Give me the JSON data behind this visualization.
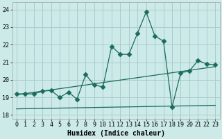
{
  "xlabel": "Humidex (Indice chaleur)",
  "bg_color": "#cceae8",
  "grid_color": "#aacccc",
  "line_color": "#1a6b5a",
  "spine_color": "#aaaaaa",
  "xlim": [
    -0.5,
    23.5
  ],
  "ylim": [
    17.8,
    24.4
  ],
  "xticks": [
    0,
    1,
    2,
    3,
    4,
    5,
    6,
    7,
    8,
    9,
    10,
    11,
    12,
    13,
    14,
    15,
    16,
    17,
    18,
    19,
    20,
    21,
    22,
    23
  ],
  "yticks": [
    18,
    19,
    20,
    21,
    22,
    23,
    24
  ],
  "main_series": [
    [
      0,
      19.2
    ],
    [
      1,
      19.2
    ],
    [
      2,
      19.2
    ],
    [
      3,
      19.35
    ],
    [
      4,
      19.4
    ],
    [
      5,
      19.0
    ],
    [
      6,
      19.3
    ],
    [
      7,
      18.9
    ],
    [
      8,
      20.3
    ],
    [
      9,
      19.7
    ],
    [
      10,
      19.6
    ],
    [
      11,
      21.9
    ],
    [
      12,
      21.45
    ],
    [
      13,
      21.45
    ],
    [
      14,
      22.65
    ],
    [
      15,
      23.85
    ],
    [
      16,
      22.5
    ],
    [
      17,
      22.2
    ],
    [
      18,
      18.45
    ],
    [
      19,
      20.4
    ],
    [
      20,
      20.5
    ],
    [
      21,
      21.1
    ],
    [
      22,
      20.9
    ],
    [
      23,
      20.85
    ]
  ],
  "line1_series": [
    [
      0,
      19.15
    ],
    [
      23,
      20.75
    ]
  ],
  "line2_series": [
    [
      0,
      18.35
    ],
    [
      23,
      18.55
    ]
  ],
  "xlabel_fontsize": 7,
  "tick_fontsize": 6,
  "marker_size": 3.5
}
